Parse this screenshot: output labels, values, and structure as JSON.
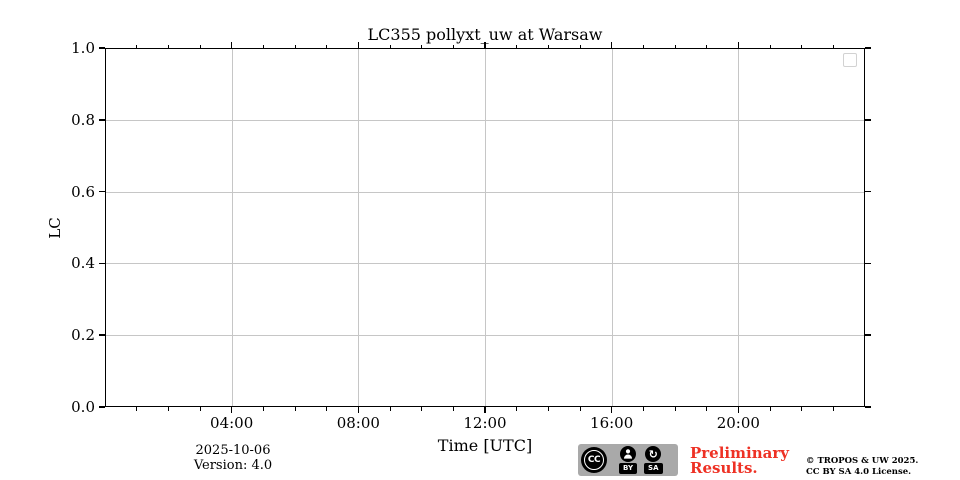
{
  "chart_data": {
    "type": "line",
    "title": "LC355 pollyxt_uw at Warsaw",
    "xlabel": "Time [UTC]",
    "ylabel": "LC",
    "x_tick_labels": [
      "04:00",
      "08:00",
      "12:00",
      "16:00",
      "20:00"
    ],
    "x_tick_hours": [
      4,
      8,
      12,
      16,
      20
    ],
    "x_minor_tick_interval_hours": 1,
    "x_range_hours": [
      0,
      24
    ],
    "y_tick_labels": [
      "0.0",
      "0.2",
      "0.4",
      "0.6",
      "0.8",
      "1.0"
    ],
    "y_tick_values": [
      0,
      0.2,
      0.4,
      0.6,
      0.8,
      1.0
    ],
    "ylim": [
      0,
      1
    ],
    "grid": true,
    "legend": {
      "visible": true,
      "position": "upper right",
      "entries": []
    },
    "series": []
  },
  "footer": {
    "date": "2025-10-06",
    "version": "Version: 4.0",
    "preliminary_lines": [
      "Preliminary",
      "Results."
    ],
    "copyright_lines": [
      "© TROPOS & UW 2025.",
      "CC BY SA 4.0 License."
    ],
    "cc_badge": {
      "cc": "CC",
      "by": "BY",
      "sa": "SA"
    }
  },
  "colors": {
    "grid": "#c6c6c6",
    "spine": "#000000",
    "preliminary_red": "#ee3124",
    "badge_gray": "#a9a9a9",
    "legend_border": "#d2d2d2"
  }
}
